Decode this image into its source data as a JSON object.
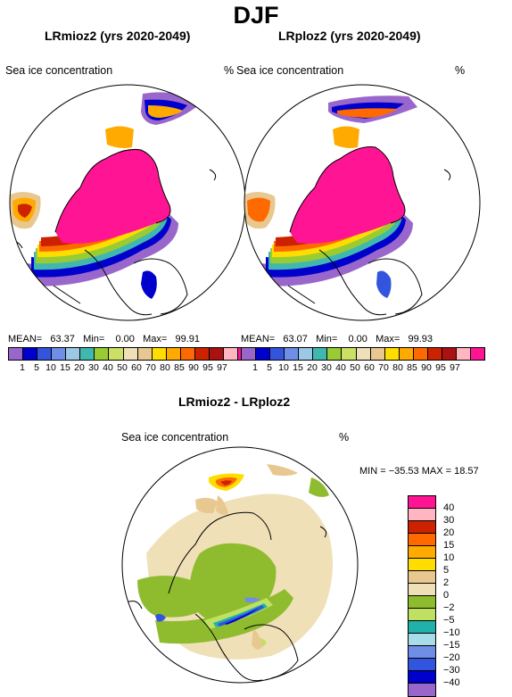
{
  "season": "DJF",
  "panels": [
    {
      "title": "LRmioz2 (yrs 2020-2049)",
      "variable": "Sea ice concentration",
      "unit": "%",
      "stats": {
        "mean_label": "MEAN=",
        "mean": "63.37",
        "min_label": "Min=",
        "min": "0.00",
        "max_label": "Max=",
        "max": "99.91"
      }
    },
    {
      "title": "LRploz2 (yrs 2020-2049)",
      "variable": "Sea ice concentration",
      "unit": "%",
      "stats": {
        "mean_label": "MEAN=",
        "mean": "63.07",
        "min_label": "Min=",
        "min": "0.00",
        "max_label": "Max=",
        "max": "99.93"
      }
    }
  ],
  "conc_colorbar": {
    "labels": [
      "1",
      "5",
      "10",
      "15",
      "20",
      "30",
      "40",
      "50",
      "60",
      "70",
      "80",
      "85",
      "90",
      "95",
      "97"
    ],
    "colors": [
      "#9966cc",
      "#0000cc",
      "#3355dd",
      "#6f8fe6",
      "#9cc7e6",
      "#40b8b0",
      "#99cc33",
      "#cce066",
      "#f0e0b8",
      "#e8c890",
      "#ffdd00",
      "#ffaa00",
      "#ff6a00",
      "#cc2200",
      "#aa1111",
      "#ffb6c1",
      "#ff1493"
    ]
  },
  "diff_panel": {
    "title": "LRmioz2 - LRploz2",
    "variable": "Sea ice concentration",
    "unit": "%",
    "minmax": "MIN = −35.53  MAX =  18.57"
  },
  "diff_colorbar": {
    "labels": [
      "40",
      "30",
      "20",
      "15",
      "10",
      "5",
      "2",
      "0",
      "−2",
      "−5",
      "−10",
      "−15",
      "−20",
      "−30",
      "−40"
    ],
    "colors": [
      "#ff1493",
      "#ffb6c1",
      "#cc2200",
      "#ff6a00",
      "#ffaa00",
      "#ffdd00",
      "#e8c890",
      "#f0e0b8",
      "#8fbc2f",
      "#bfe060",
      "#20b2aa",
      "#a8dce8",
      "#6f8fe6",
      "#3355dd",
      "#0000cc",
      "#9966cc"
    ]
  }
}
